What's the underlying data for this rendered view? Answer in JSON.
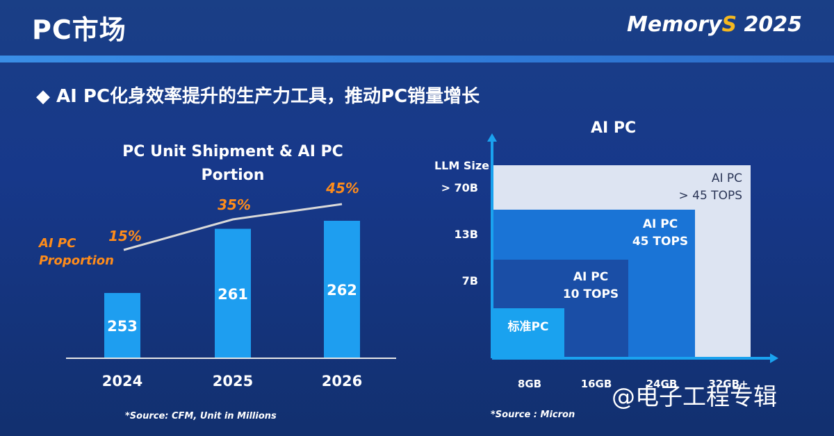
{
  "header": {
    "title": "PC市场",
    "logo_text_main": "Memory",
    "logo_text_s": "S",
    "logo_year": "2025"
  },
  "subtitle": "◆ AI PC化身效率提升的生产力工具，推动PC销量增长",
  "chart_data": [
    {
      "type": "bar",
      "title": "PC Unit Shipment & AI PC Portion",
      "categories": [
        "2024",
        "2025",
        "2026"
      ],
      "series": [
        {
          "values": [
            253,
            261,
            262
          ]
        },
        {
          "name": "AI PC Proportion",
          "type": "line",
          "values": [
            15,
            35,
            45
          ],
          "labels": [
            "15%",
            "35%",
            "45%"
          ]
        }
      ],
      "ylim": [
        0,
        300
      ],
      "source": "*Source: CFM, Unit in Millions",
      "colors": {
        "bar": "#1e9ef0",
        "line": "#d9d9d9",
        "label": "#ff8c1a"
      }
    },
    {
      "type": "diagram",
      "title": "AI PC",
      "ylabel": "LLM Size",
      "y_levels": [
        "> 70B",
        "13B",
        "7B"
      ],
      "x_levels": [
        "8GB",
        "16GB",
        "24GB",
        "32GB+"
      ],
      "tiers": [
        {
          "label": "标准PC",
          "memory": "8GB",
          "llm": "",
          "color": "#1aa2ef"
        },
        {
          "label_lines": [
            "AI PC",
            "10 TOPS"
          ],
          "memory": "16GB",
          "llm": "7B",
          "color": "#1a4ea6"
        },
        {
          "label_lines": [
            "AI PC",
            "45 TOPS"
          ],
          "memory": "24GB",
          "llm": "13B",
          "color": "#1a74d6"
        },
        {
          "label_lines": [
            "AI PC",
            "> 45 TOPS"
          ],
          "memory": "32GB+",
          "llm": "> 70B",
          "color": "#dde4f2"
        }
      ],
      "source": "*Source : Micron"
    }
  ],
  "watermark": "@电子工程专辑"
}
